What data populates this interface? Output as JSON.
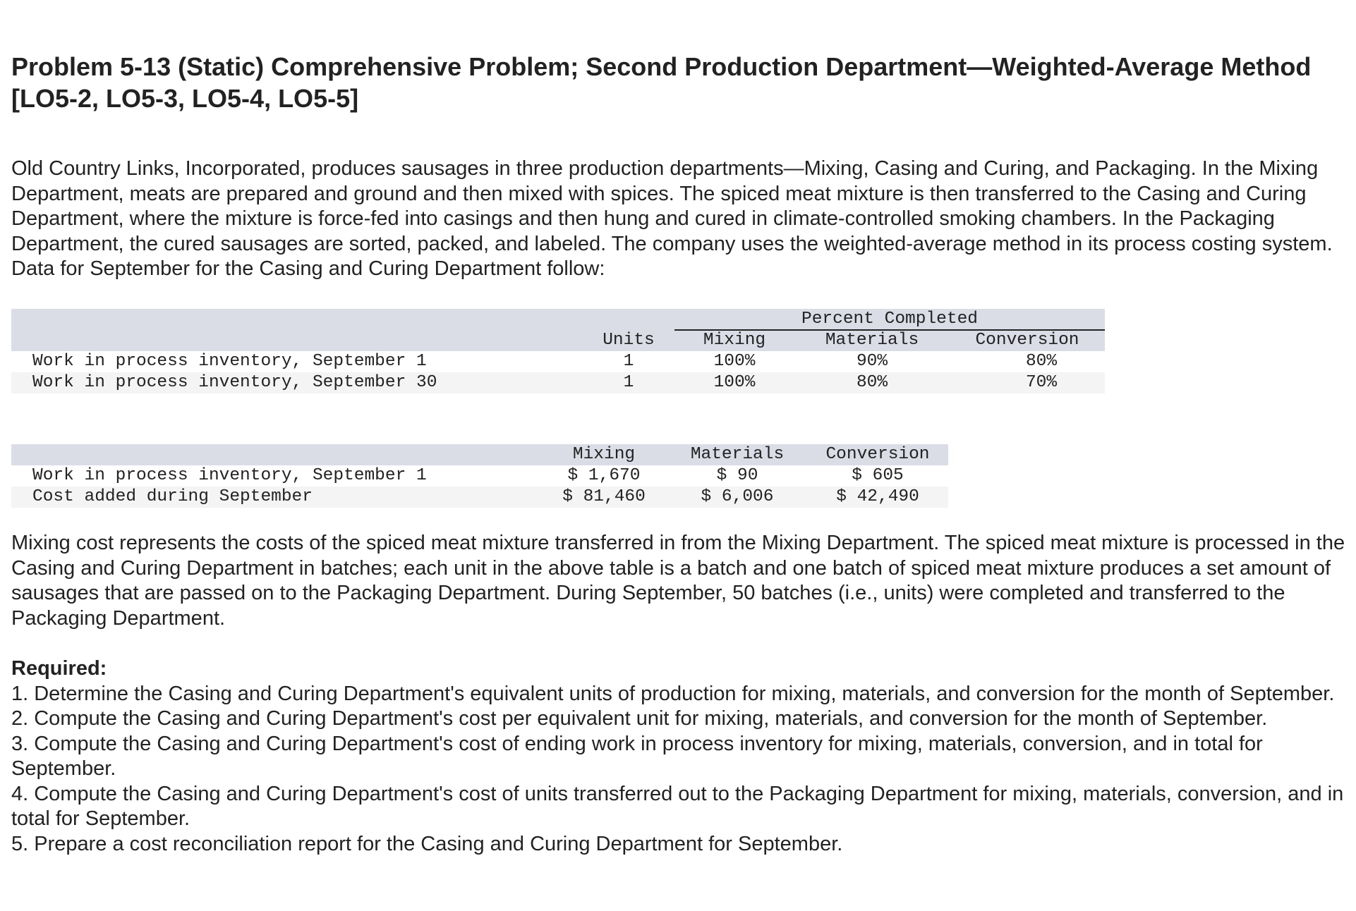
{
  "title": "Problem 5-13 (Static) Comprehensive Problem; Second Production Department—Weighted-Average Method [LO5-2, LO5-3, LO5-4, LO5-5]",
  "intro": "Old Country Links, Incorporated, produces sausages in three production departments—Mixing, Casing and Curing, and Packaging. In the Mixing Department, meats are prepared and ground and then mixed with spices. The spiced meat mixture is then transferred to the Casing and Curing Department, where the mixture is force-fed into casings and then hung and cured in climate-controlled smoking chambers. In the Packaging Department, the cured sausages are sorted, packed, and labeled. The company uses the weighted-average method in its process costing system. Data for September for the Casing and Curing Department follow:",
  "units_table": {
    "group_header": "Percent Completed",
    "headers": [
      "Units",
      "Mixing",
      "Materials",
      "Conversion"
    ],
    "rows": [
      {
        "label": "Work in process inventory, September 1",
        "units": "1",
        "mixing": "100%",
        "materials": "90%",
        "conversion": "80%"
      },
      {
        "label": "Work in process inventory, September 30",
        "units": "1",
        "mixing": "100%",
        "materials": "80%",
        "conversion": "70%"
      }
    ]
  },
  "cost_table": {
    "headers": [
      "Mixing",
      "Materials",
      "Conversion"
    ],
    "rows": [
      {
        "label": "Work in process inventory, September 1",
        "mixing": "$ 1,670",
        "materials": "$ 90",
        "conversion": "$ 605"
      },
      {
        "label": "Cost added during September",
        "mixing": "$ 81,460",
        "materials": "$ 6,006",
        "conversion": "$ 42,490"
      }
    ]
  },
  "para2": "Mixing cost represents the costs of the spiced meat mixture transferred in from the Mixing Department. The spiced meat mixture is processed in the Casing and Curing Department in batches; each unit in the above table is a batch and one batch of spiced meat mixture produces a set amount of sausages that are passed on to the Packaging Department. During September, 50 batches (i.e., units) were completed and transferred to the Packaging Department.",
  "required": {
    "title": "Required:",
    "items": [
      "1. Determine the Casing and Curing Department's equivalent units of production for mixing, materials, and conversion for the month of September.",
      "2. Compute the Casing and Curing Department's cost per equivalent unit for mixing, materials, and conversion for the month of September.",
      "3. Compute the Casing and Curing Department's cost of ending work in process inventory for mixing, materials, conversion, and in total for September.",
      "4. Compute the Casing and Curing Department's cost of units transferred out to the Packaging Department for mixing, materials, conversion, and in total for September.",
      "5. Prepare a cost reconciliation report for the Casing and Curing Department for September."
    ]
  }
}
